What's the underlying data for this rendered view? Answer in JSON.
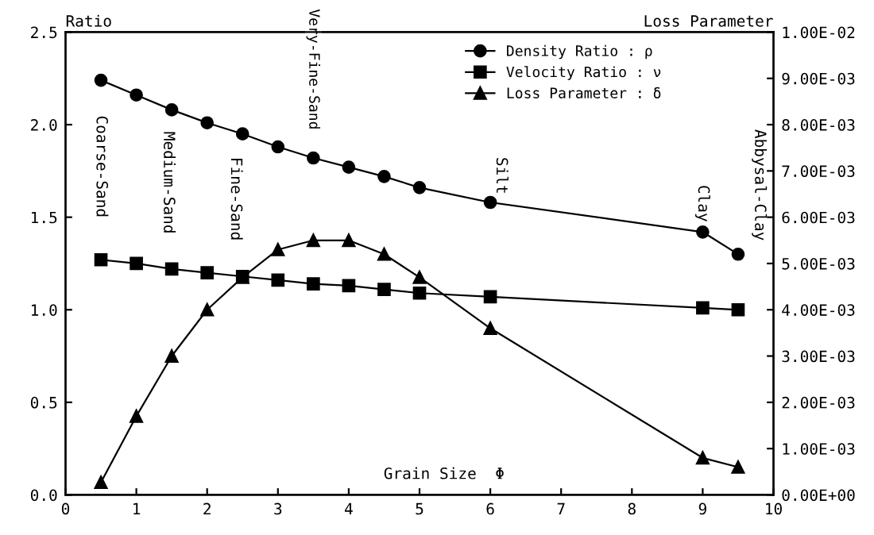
{
  "chart_data": {
    "type": "line",
    "xlabel": "Grain Size  Φ",
    "ylabel": "Ratio",
    "y2label": "Loss Parameter",
    "x": [
      0.5,
      1,
      1.5,
      2,
      2.5,
      3,
      3.5,
      4,
      4.5,
      5,
      6,
      9,
      9.5
    ],
    "series": [
      {
        "name": "Density Ratio : ρ",
        "color": "#000000",
        "marker": "circle",
        "values": [
          2.24,
          2.16,
          2.08,
          2.01,
          1.95,
          1.88,
          1.82,
          1.77,
          1.72,
          1.66,
          1.58,
          1.42,
          1.3
        ]
      },
      {
        "name": "Velocity Ratio : ν",
        "color": "#000000",
        "marker": "square",
        "values": [
          1.27,
          1.25,
          1.22,
          1.2,
          1.18,
          1.16,
          1.14,
          1.13,
          1.11,
          1.09,
          1.07,
          1.01,
          1.0
        ]
      },
      {
        "name": "Loss Parameter : δ",
        "color": "#000000",
        "marker": "triangle",
        "axis": "y2",
        "values": [
          0.00027,
          0.0017,
          0.003,
          0.004,
          0.0047,
          0.0053,
          0.0055,
          0.0055,
          0.0052,
          0.0047,
          0.0036,
          0.0008,
          0.0006
        ]
      }
    ],
    "xlim": [
      0,
      10
    ],
    "xticks": [
      0,
      1,
      2,
      3,
      4,
      5,
      6,
      7,
      8,
      9,
      10
    ],
    "ylim": [
      0,
      2.5
    ],
    "yticks": [
      {
        "value": 0,
        "label": "0.0"
      },
      {
        "value": 0.5,
        "label": "0.5"
      },
      {
        "value": 1,
        "label": "1.0"
      },
      {
        "value": 1.5,
        "label": "1.5"
      },
      {
        "value": 2,
        "label": "2.0"
      },
      {
        "value": 2.5,
        "label": "2.5"
      }
    ],
    "y2lim": [
      0,
      0.01
    ],
    "y2ticks": [
      {
        "value": 0,
        "label": "0.00E+00"
      },
      {
        "value": 0.001,
        "label": "1.00E-03"
      },
      {
        "value": 0.002,
        "label": "2.00E-03"
      },
      {
        "value": 0.003,
        "label": "3.00E-03"
      },
      {
        "value": 0.004,
        "label": "4.00E-03"
      },
      {
        "value": 0.005,
        "label": "5.00E-03"
      },
      {
        "value": 0.006,
        "label": "6.00E-03"
      },
      {
        "value": 0.007,
        "label": "7.00E-03"
      },
      {
        "value": 0.008,
        "label": "8.00E-03"
      },
      {
        "value": 0.009,
        "label": "9.00E-03"
      },
      {
        "value": 0.01,
        "label": "1.00E-02"
      }
    ],
    "annotations": [
      "Coarse-Sand",
      "Medium-Sand",
      "Fine-Sand",
      "Very-Fine-Sand",
      "Silt",
      "Clay",
      "Abbysal-Clay"
    ],
    "legend": "top right",
    "grid": false,
    "line_style": "solid"
  }
}
